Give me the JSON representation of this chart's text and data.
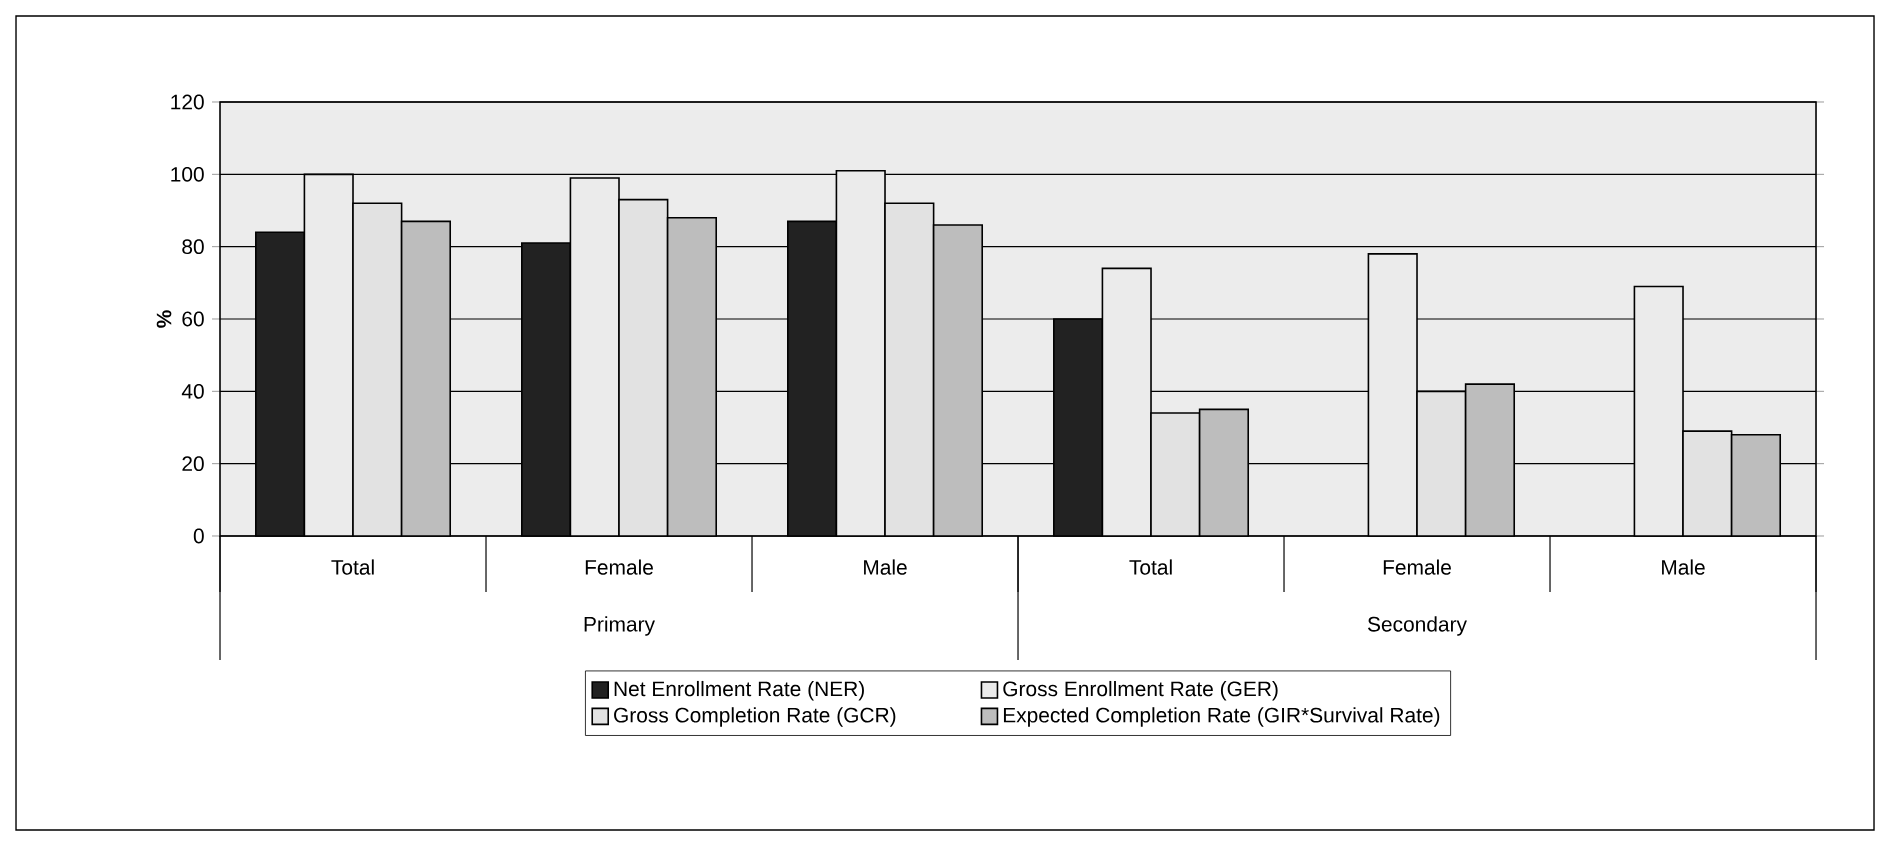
{
  "chart_data": {
    "type": "bar",
    "ylabel": "%",
    "categories": [
      "Total",
      "Female",
      "Male",
      "Total",
      "Female",
      "Male"
    ],
    "annotations": [
      "Primary",
      "Secondary"
    ],
    "series": [
      {
        "name": "Net Enrollment Rate (NER)",
        "color": "#222222",
        "values": [
          84,
          81,
          87,
          60,
          null,
          null
        ]
      },
      {
        "name": "Gross Enrollment Rate (GER)",
        "color": "#ebebeb",
        "values": [
          100,
          99,
          101,
          74,
          78,
          69
        ]
      },
      {
        "name": "Gross Completion Rate (GCR)",
        "color": "#e2e2e2",
        "values": [
          92,
          93,
          92,
          34,
          40,
          29
        ]
      },
      {
        "name": "Expected Completion Rate (GIR*Survival Rate)",
        "color": "#bdbdbd",
        "values": [
          87,
          88,
          86,
          35,
          42,
          28
        ]
      }
    ],
    "ylim": [
      0,
      120
    ],
    "yticks": [
      0,
      20,
      40,
      60,
      80,
      100,
      120
    ],
    "grid": "y",
    "legend": "bottom"
  }
}
